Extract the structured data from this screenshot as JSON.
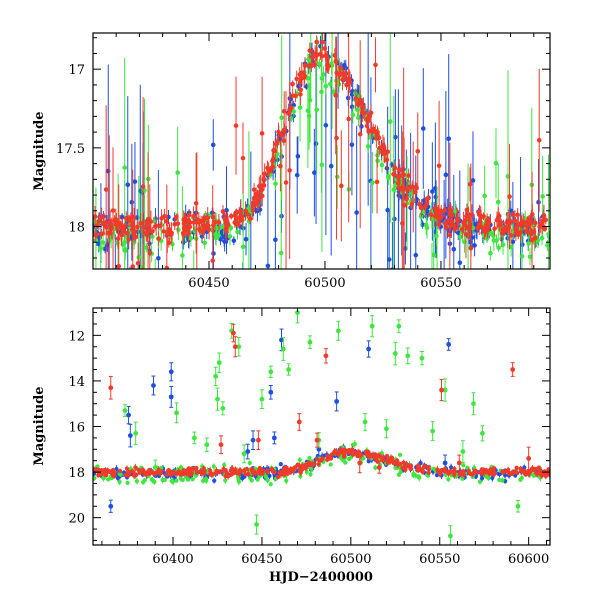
{
  "colors": {
    "blue": "#1d4fe0",
    "green": "#3ee63e",
    "red": "#f03a2a",
    "frame": "#000000"
  },
  "xlabel": "HJD−2400000",
  "chart_data": [
    {
      "type": "scatter",
      "panel": "top",
      "title": "",
      "xlabel": "",
      "ylabel": "Magnitude",
      "xlim": [
        60400,
        60597
      ],
      "ylim": [
        18.27,
        16.77
      ],
      "y_inverted": true,
      "xticks": [
        60450,
        60500,
        60550
      ],
      "yticks": [
        17,
        17.5,
        18
      ],
      "grid": false,
      "legend": "none",
      "baseline_mag": 18.0,
      "peak": {
        "x": 60497,
        "y": 16.9
      },
      "series": [
        {
          "color": "blue",
          "n_points": 320,
          "baseline_mag": 18.02,
          "scatter": 0.09,
          "outlier_rate": 0.18
        },
        {
          "color": "green",
          "n_points": 220,
          "baseline_mag": 18.05,
          "scatter": 0.1,
          "outlier_rate": 0.2
        },
        {
          "color": "red",
          "n_points": 420,
          "baseline_mag": 18.0,
          "scatter": 0.07,
          "outlier_rate": 0.08
        }
      ]
    },
    {
      "type": "scatter",
      "panel": "bottom",
      "title": "",
      "xlabel": "HJD−2400000",
      "ylabel": "Magnitude",
      "xlim": [
        60355,
        60612
      ],
      "ylim": [
        21.2,
        10.8
      ],
      "y_inverted": true,
      "xticks": [
        60400,
        60450,
        60500,
        60550,
        60600
      ],
      "yticks": [
        12,
        14,
        16,
        18,
        20
      ],
      "grid": false,
      "legend": "none",
      "baseline_mag": 18.0,
      "peak": {
        "x": 60497,
        "y": 17.1
      },
      "series": [
        {
          "color": "blue",
          "n_points": 260,
          "baseline_mag": 18.05,
          "scatter": 0.2,
          "outliers": [
            [
              60365,
              19.5
            ],
            [
              60375,
              15.5
            ],
            [
              60376,
              16.4
            ],
            [
              60389,
              14.2
            ],
            [
              60399,
              13.6
            ],
            [
              60399,
              14.7
            ],
            [
              60442,
              17.1
            ],
            [
              60445,
              16.6
            ],
            [
              60455,
              14.5
            ],
            [
              60457,
              16.5
            ],
            [
              60461,
              12.2
            ],
            [
              60482,
              17.0
            ],
            [
              60492,
              14.9
            ],
            [
              60510,
              12.6
            ],
            [
              60555,
              12.4
            ],
            [
              60553,
              17.6
            ]
          ]
        },
        {
          "color": "green",
          "n_points": 220,
          "baseline_mag": 18.1,
          "scatter": 0.35,
          "outliers": [
            [
              60373,
              15.3
            ],
            [
              60379,
              16.3
            ],
            [
              60390,
              17.8
            ],
            [
              60402,
              15.4
            ],
            [
              60412,
              16.5
            ],
            [
              60419,
              16.8
            ],
            [
              60424,
              13.8
            ],
            [
              60425,
              14.8
            ],
            [
              60426,
              13.2
            ],
            [
              60428,
              15.2
            ],
            [
              60433,
              11.8
            ],
            [
              60437,
              12.5
            ],
            [
              60440,
              17.2
            ],
            [
              60447,
              20.3
            ],
            [
              60450,
              14.8
            ],
            [
              60455,
              13.6
            ],
            [
              60462,
              12.6
            ],
            [
              60465,
              13.5
            ],
            [
              60470,
              11.0
            ],
            [
              60477,
              12.3
            ],
            [
              60482,
              16.6
            ],
            [
              60493,
              11.8
            ],
            [
              60508,
              15.8
            ],
            [
              60512,
              11.6
            ],
            [
              60520,
              16.1
            ],
            [
              60525,
              12.8
            ],
            [
              60527,
              11.6
            ],
            [
              60532,
              12.9
            ],
            [
              60540,
              13.0
            ],
            [
              60546,
              16.2
            ],
            [
              60553,
              14.4
            ],
            [
              60556,
              20.8
            ],
            [
              60563,
              17.1
            ],
            [
              60569,
              15.0
            ],
            [
              60574,
              16.3
            ],
            [
              60594,
              19.5
            ]
          ]
        },
        {
          "color": "red",
          "n_points": 400,
          "baseline_mag": 18.0,
          "scatter": 0.15,
          "outliers": [
            [
              60365,
              14.3
            ],
            [
              60434,
              11.9
            ],
            [
              60435,
              12.5
            ],
            [
              60427,
              16.8
            ],
            [
              60448,
              16.6
            ],
            [
              60471,
              15.8
            ],
            [
              60481,
              16.6
            ],
            [
              60486,
              12.9
            ],
            [
              60505,
              17.6
            ],
            [
              60516,
              17.8
            ],
            [
              60551,
              14.4
            ],
            [
              60561,
              17.6
            ],
            [
              60591,
              13.5
            ],
            [
              60600,
              17.4
            ]
          ]
        }
      ]
    }
  ]
}
